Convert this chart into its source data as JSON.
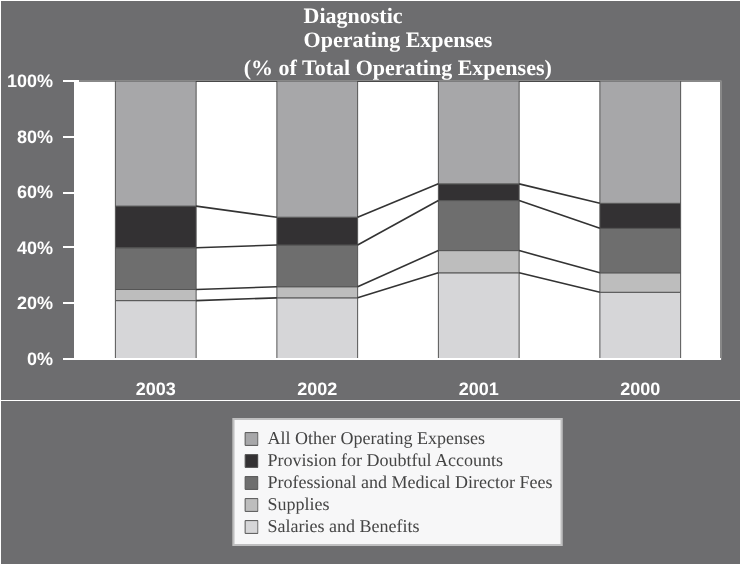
{
  "chart_data": {
    "type": "bar",
    "stacked": true,
    "title": "Diagnostic\nOperating Expenses",
    "subtitle": "(% of Total Operating Expenses)",
    "categories": [
      "2003",
      "2002",
      "2001",
      "2000"
    ],
    "series": [
      {
        "name": "Salaries and Benefits",
        "color": "#d6d6d8",
        "values": [
          21,
          22,
          31,
          24
        ]
      },
      {
        "name": "Supplies",
        "color": "#bdbdbd",
        "values": [
          4,
          4,
          8,
          7
        ]
      },
      {
        "name": "Professional and Medical Director Fees",
        "color": "#6e6e6e",
        "values": [
          15,
          15,
          18,
          16
        ]
      },
      {
        "name": "Provision for Doubtful Accounts",
        "color": "#333133",
        "values": [
          15,
          10,
          6,
          9
        ]
      },
      {
        "name": "All Other Operating Expenses",
        "color": "#a7a7a9",
        "values": [
          45,
          49,
          37,
          44
        ]
      }
    ],
    "ylim": [
      0,
      100
    ],
    "yticks": [
      {
        "value": 0,
        "label": "0%"
      },
      {
        "value": 20,
        "label": "20%"
      },
      {
        "value": 40,
        "label": "40%"
      },
      {
        "value": 60,
        "label": "60%"
      },
      {
        "value": 80,
        "label": "80%"
      },
      {
        "value": 100,
        "label": "100%"
      }
    ],
    "grid": false,
    "legend": "bottom"
  }
}
